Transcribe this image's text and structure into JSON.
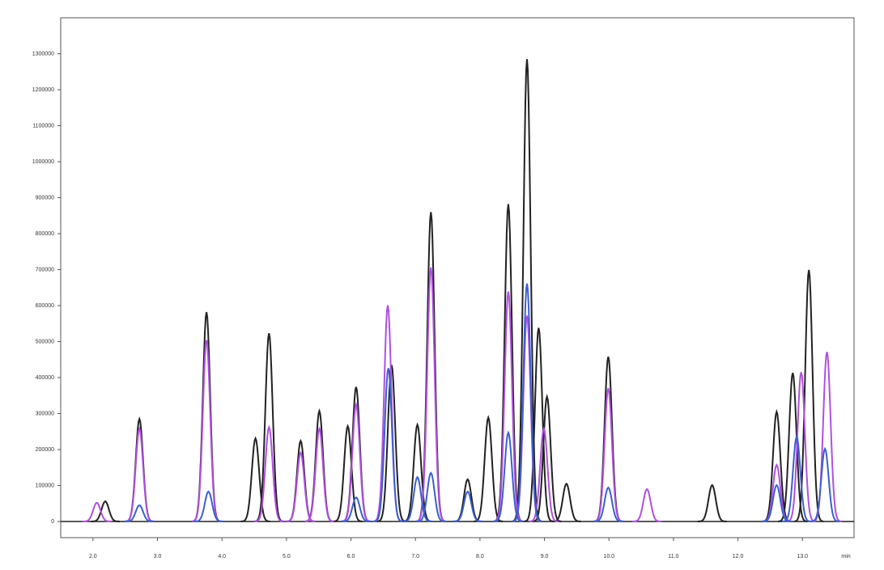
{
  "chart_data": {
    "type": "line",
    "x_label": "min",
    "xlim": [
      1.5,
      13.8
    ],
    "ylim": [
      -45000,
      1400000
    ],
    "xticks": [
      {
        "value": 2,
        "label": "2.0"
      },
      {
        "value": 3,
        "label": "3.0"
      },
      {
        "value": 4,
        "label": "4.0"
      },
      {
        "value": 5,
        "label": "5.0"
      },
      {
        "value": 6,
        "label": "6.0"
      },
      {
        "value": 7,
        "label": "7.0"
      },
      {
        "value": 8,
        "label": "8.0"
      },
      {
        "value": 9,
        "label": "9.0"
      },
      {
        "value": 10,
        "label": "10.0"
      },
      {
        "value": 11,
        "label": "11.0"
      },
      {
        "value": 12,
        "label": "12.0"
      },
      {
        "value": 13,
        "label": "13.0"
      }
    ],
    "yticks": [
      0,
      100000,
      200000,
      300000,
      400000,
      500000,
      600000,
      700000,
      800000,
      900000,
      1000000,
      1100000,
      1200000,
      1300000
    ],
    "series": [
      {
        "color": "#222222",
        "x": [
          2.19,
          2.72,
          3.76,
          4.52,
          4.73,
          5.22,
          5.51,
          5.95,
          6.08,
          6.63,
          7.03,
          7.24,
          7.81,
          8.13,
          8.44,
          8.73,
          8.91,
          9.04,
          9.34,
          9.99,
          11.6,
          12.6,
          12.85,
          13.1
        ],
        "values": [
          56000,
          285000,
          582000,
          231000,
          523000,
          224000,
          307000,
          265000,
          374000,
          435000,
          269000,
          860000,
          117000,
          289000,
          882000,
          1285000,
          538000,
          347000,
          105000,
          458000,
          101000,
          305000,
          413000,
          699000
        ]
      },
      {
        "color": "#b050e0",
        "x": [
          2.06,
          2.72,
          3.76,
          4.73,
          5.22,
          5.51,
          6.08,
          6.57,
          7.24,
          8.44,
          8.73,
          8.99,
          9.99,
          10.59,
          12.6,
          12.98,
          13.38
        ],
        "values": [
          52000,
          258000,
          504000,
          262000,
          191000,
          258000,
          325000,
          601000,
          706000,
          639000,
          572000,
          258000,
          370000,
          90000,
          157000,
          415000,
          471000
        ]
      },
      {
        "color": "#3a5fd0",
        "x": [
          2.72,
          3.79,
          6.08,
          6.58,
          7.03,
          7.24,
          7.81,
          8.44,
          8.73,
          9.99,
          12.6,
          12.91,
          13.35
        ],
        "values": [
          45000,
          83000,
          67000,
          426000,
          123000,
          135000,
          83000,
          247000,
          661000,
          94000,
          101000,
          235000,
          202000
        ]
      }
    ]
  }
}
